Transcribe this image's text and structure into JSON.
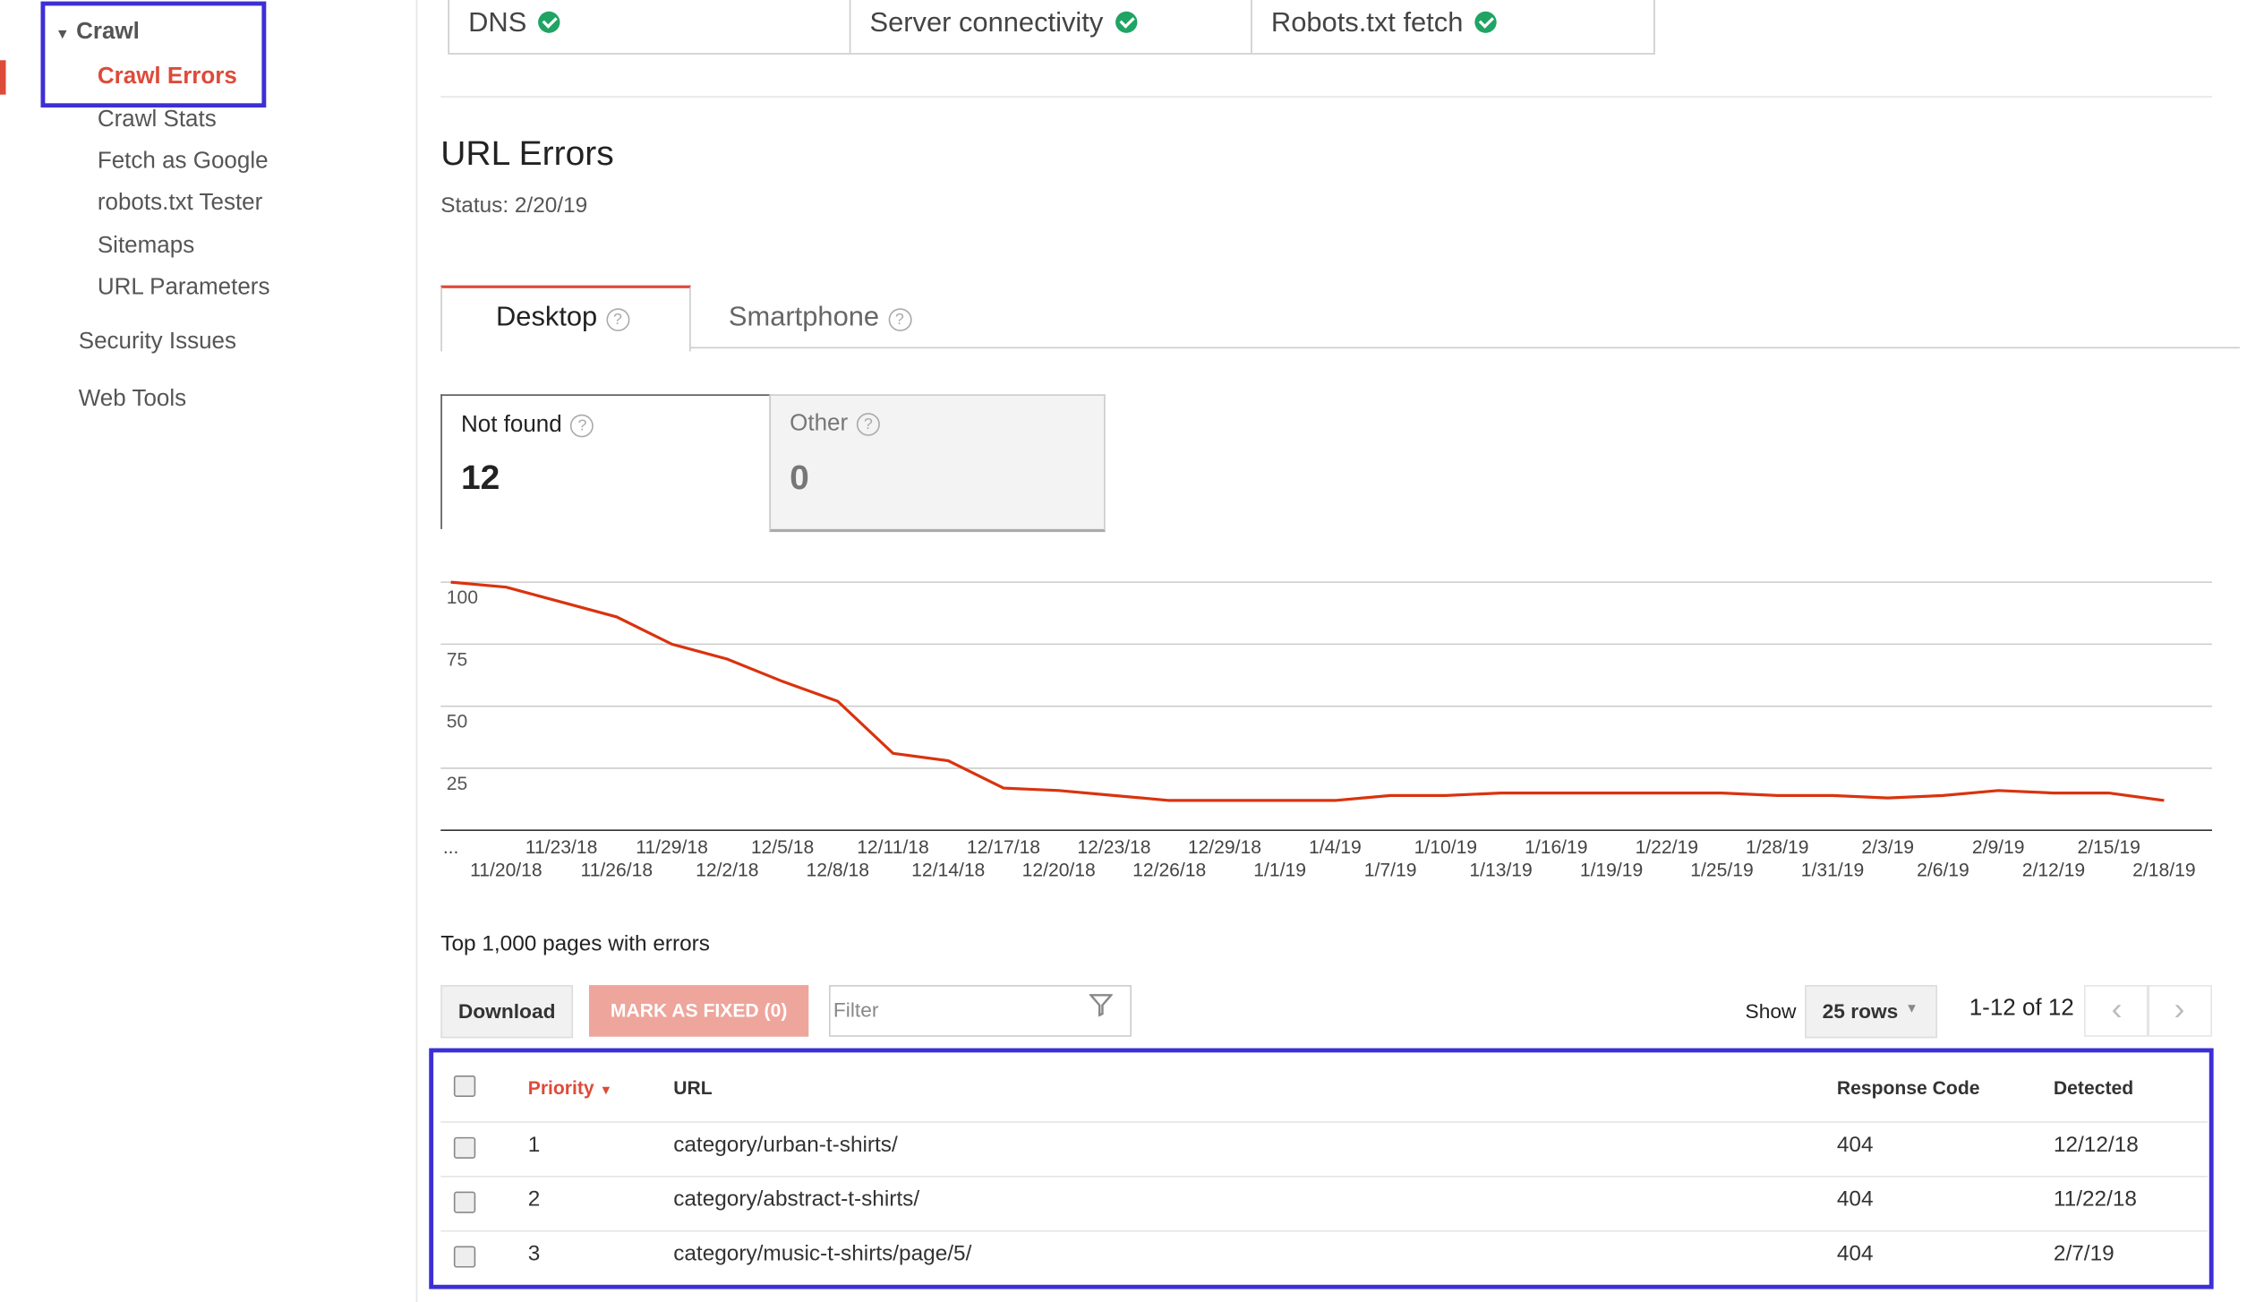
{
  "sidebar": {
    "group": "Crawl",
    "items": [
      "Crawl Errors",
      "Crawl Stats",
      "Fetch as Google",
      "robots.txt Tester",
      "Sitemaps",
      "URL Parameters"
    ],
    "sections": [
      "Security Issues",
      "Web Tools"
    ]
  },
  "status_checks": [
    "DNS",
    "Server connectivity",
    "Robots.txt fetch"
  ],
  "section": {
    "title": "URL Errors",
    "status": "Status: 2/20/19"
  },
  "tabs": [
    "Desktop",
    "Smartphone"
  ],
  "cards": [
    {
      "label": "Not found",
      "value": "12"
    },
    {
      "label": "Other",
      "value": "0"
    }
  ],
  "chart_data": {
    "type": "line",
    "categories": [
      "...",
      "11/20/18",
      "11/23/18",
      "11/26/18",
      "11/29/18",
      "12/2/18",
      "12/5/18",
      "12/8/18",
      "12/11/18",
      "12/14/18",
      "12/17/18",
      "12/20/18",
      "12/23/18",
      "12/26/18",
      "12/29/18",
      "1/1/19",
      "1/4/19",
      "1/7/19",
      "1/10/19",
      "1/13/19",
      "1/16/19",
      "1/19/19",
      "1/22/19",
      "1/25/19",
      "1/28/19",
      "1/31/19",
      "2/3/19",
      "2/6/19",
      "2/9/19",
      "2/12/19",
      "2/15/19",
      "2/18/19"
    ],
    "series": [
      {
        "name": "Not found",
        "color": "#d9330f",
        "values": [
          100,
          98,
          92,
          86,
          75,
          69,
          60,
          52,
          31,
          28,
          17,
          16,
          14,
          12,
          12,
          12,
          12,
          14,
          14,
          15,
          15,
          15,
          15,
          15,
          14,
          14,
          13,
          14,
          16,
          15,
          15,
          12
        ]
      }
    ],
    "ylim": [
      0,
      100
    ],
    "yticks": [
      25,
      50,
      75,
      100
    ],
    "grid": true
  },
  "table_title": "Top 1,000 pages with errors",
  "toolbar": {
    "download": "Download",
    "mark_fixed": "MARK AS FIXED (0)",
    "filter": "Filter",
    "show": "Show",
    "rows": "25 rows",
    "range": "1-12 of 12"
  },
  "table": {
    "columns": [
      "Priority",
      "URL",
      "Response Code",
      "Detected"
    ],
    "rows": [
      [
        "1",
        "category/urban-t-shirts/",
        "404",
        "12/12/18"
      ],
      [
        "2",
        "category/abstract-t-shirts/",
        "404",
        "11/22/18"
      ],
      [
        "3",
        "category/music-t-shirts/page/5/",
        "404",
        "2/7/19"
      ]
    ]
  }
}
